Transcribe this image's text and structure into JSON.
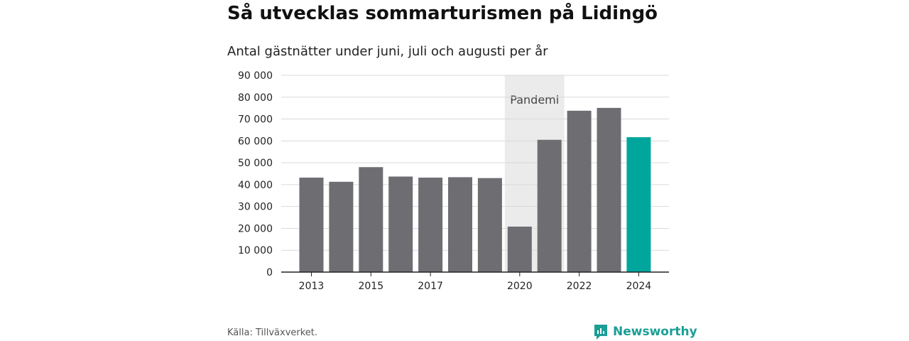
{
  "header": {
    "title": "Så utvecklas sommarturismen på Lidingö",
    "subtitle": "Antal gästnätter under juni, juli och augusti per år"
  },
  "footer": {
    "source": "Källa: Tillväxverket.",
    "brand": "Newsworthy"
  },
  "colors": {
    "bar": "#6e6d72",
    "highlight": "#00a69c",
    "band": "#ebebeb",
    "grid": "#d9d9d9"
  },
  "chart_data": {
    "type": "bar",
    "title": "Så utvecklas sommarturismen på Lidingö",
    "subtitle": "Antal gästnätter under juni, juli och augusti per år",
    "xlabel": "",
    "ylabel": "",
    "ylim": [
      0,
      90000
    ],
    "yticks": [
      0,
      10000,
      20000,
      30000,
      40000,
      50000,
      60000,
      70000,
      80000,
      90000
    ],
    "ytick_labels": [
      "0",
      "10 000",
      "20 000",
      "30 000",
      "40 000",
      "50 000",
      "60 000",
      "70 000",
      "80 000",
      "90 000"
    ],
    "categories": [
      "2013",
      "2014",
      "2015",
      "2016",
      "2017",
      "2018",
      "2019",
      "2020",
      "2021",
      "2022",
      "2023",
      "2024"
    ],
    "xtick_labels": [
      "2013",
      "2015",
      "2017",
      "2020",
      "2022",
      "2024"
    ],
    "values": [
      43200,
      41300,
      48000,
      43700,
      43200,
      43400,
      43000,
      20800,
      60500,
      73800,
      75100,
      61700
    ],
    "highlight_category": "2024",
    "shaded_range": {
      "from": "2020",
      "to": "2021",
      "label": "Pandemi"
    },
    "grid": true,
    "legend": "none"
  }
}
